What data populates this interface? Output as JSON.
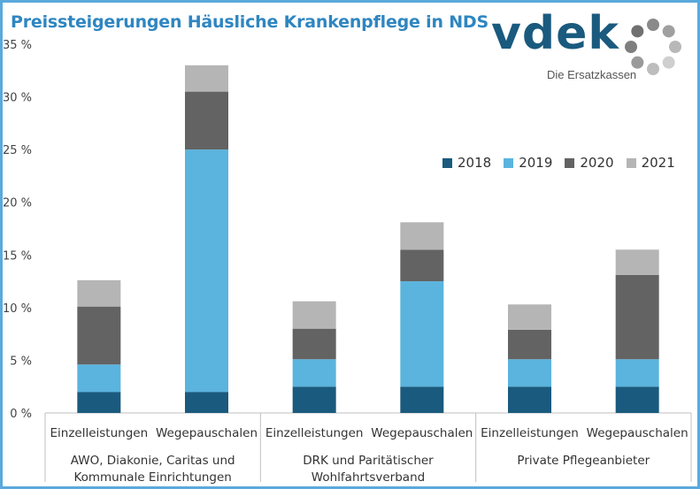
{
  "title": "Preissteigerungen Häusliche Krankenpflege in NDS",
  "logo": {
    "wordmark": "vdek",
    "tagline": "Die Ersatzkassen"
  },
  "chart_data": {
    "type": "bar",
    "stacked": true,
    "title": "Preissteigerungen Häusliche Krankenpflege in NDS",
    "ylim": [
      0,
      35
    ],
    "yticks": [
      0,
      5,
      10,
      15,
      20,
      25,
      30,
      35
    ],
    "ytick_labels": [
      "0 %",
      "5 %",
      "10 %",
      "15 %",
      "20 %",
      "25 %",
      "30 %",
      "35 %"
    ],
    "categories": [
      "Einzelleistungen",
      "Wegepauschalen",
      "Einzelleistungen",
      "Wegepauschalen",
      "Einzelleistungen",
      "Wegepauschalen"
    ],
    "groups": [
      {
        "label_lines": [
          "AWO, Diakonie, Caritas und",
          "Kommunale Einrichtungen"
        ]
      },
      {
        "label_lines": [
          "DRK und Paritätischer",
          "Wohlfahrtsverband"
        ]
      },
      {
        "label_lines": [
          "Private Pflegeanbieter"
        ]
      }
    ],
    "series": [
      {
        "name": "2018",
        "color": "#1a5a7e",
        "values": [
          2.0,
          2.0,
          2.5,
          2.5,
          2.5,
          2.5
        ]
      },
      {
        "name": "2019",
        "color": "#5ab4de",
        "values": [
          2.6,
          23.0,
          2.6,
          10.0,
          2.6,
          2.6
        ]
      },
      {
        "name": "2020",
        "color": "#636363",
        "values": [
          5.5,
          5.5,
          2.9,
          3.0,
          2.8,
          8.0
        ]
      },
      {
        "name": "2021",
        "color": "#b5b5b5",
        "values": [
          2.5,
          2.5,
          2.6,
          2.6,
          2.4,
          2.4
        ]
      }
    ],
    "legend_position": "top-right",
    "grid": false
  }
}
